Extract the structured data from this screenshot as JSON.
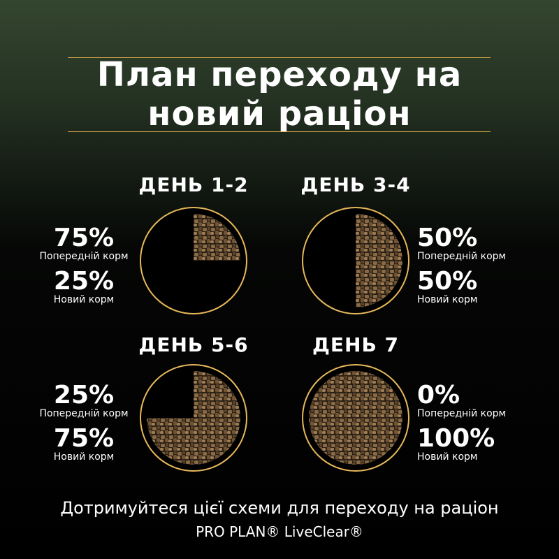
{
  "title": {
    "line1": "План переходу на",
    "line2": "новий раціон"
  },
  "accent_color": "#e8b85a",
  "stages": [
    {
      "day": "ДЕНЬ 1-2",
      "old_pct": "75%",
      "old_label": "Попередній корм",
      "new_pct": "25%",
      "new_label": "Новий корм",
      "new_fraction": 0.25,
      "labels_side": "left"
    },
    {
      "day": "ДЕНЬ 3-4",
      "old_pct": "50%",
      "old_label": "Попередній корм",
      "new_pct": "50%",
      "new_label": "Новий корм",
      "new_fraction": 0.5,
      "labels_side": "right"
    },
    {
      "day": "ДЕНЬ 5-6",
      "old_pct": "25%",
      "old_label": "Попередній корм",
      "new_pct": "75%",
      "new_label": "Новий корм",
      "new_fraction": 0.75,
      "labels_side": "left"
    },
    {
      "day": "ДЕНЬ 7",
      "old_pct": "0%",
      "old_label": "Попередній корм",
      "new_pct": "100%",
      "new_label": "Новий корм",
      "new_fraction": 1.0,
      "labels_side": "right"
    }
  ],
  "footer": {
    "line1": "Дотримуйтеся цієї схеми для переходу на раціон",
    "brand": "PRO PLAN® LiveClear®"
  }
}
